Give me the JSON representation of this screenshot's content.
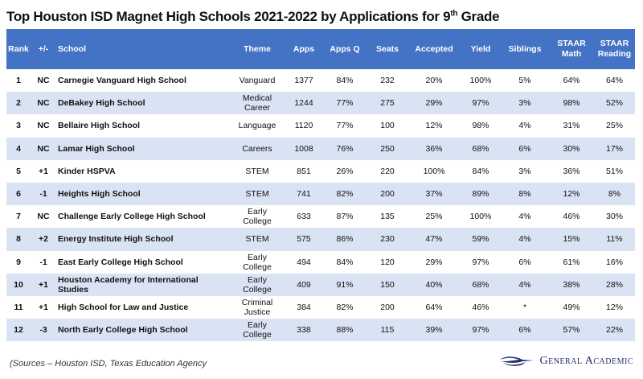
{
  "title": {
    "main": "Top Houston ISD Magnet High Schools 2021-2022 by Applications for 9",
    "sup": "th",
    "end": " Grade"
  },
  "colors": {
    "header": "#4472c4",
    "alt_row": "#dae3f3",
    "logo": "#1f2a6b"
  },
  "columns": [
    "Rank",
    "+/-",
    "School",
    "Theme",
    "Apps",
    "Apps Q",
    "Seats",
    "Accepted",
    "Yield",
    "Siblings",
    "STAAR Math",
    "STAAR Reading"
  ],
  "rows": [
    [
      "1",
      "NC",
      "Carnegie Vanguard High School",
      "Vanguard",
      "1377",
      "84%",
      "232",
      "20%",
      "100%",
      "5%",
      "64%",
      "64%"
    ],
    [
      "2",
      "NC",
      "DeBakey High School",
      "Medical Career",
      "1244",
      "77%",
      "275",
      "29%",
      "97%",
      "3%",
      "98%",
      "52%"
    ],
    [
      "3",
      "NC",
      "Bellaire High School",
      "Language",
      "1120",
      "77%",
      "100",
      "12%",
      "98%",
      "4%",
      "31%",
      "25%"
    ],
    [
      "4",
      "NC",
      "Lamar High School",
      "Careers",
      "1008",
      "76%",
      "250",
      "36%",
      "68%",
      "6%",
      "30%",
      "17%"
    ],
    [
      "5",
      "+1",
      "Kinder HSPVA",
      "STEM",
      "851",
      "26%",
      "220",
      "100%",
      "84%",
      "3%",
      "36%",
      "51%"
    ],
    [
      "6",
      "-1",
      "Heights High School",
      "STEM",
      "741",
      "82%",
      "200",
      "37%",
      "89%",
      "8%",
      "12%",
      "8%"
    ],
    [
      "7",
      "NC",
      "Challenge Early College High School",
      "Early College",
      "633",
      "87%",
      "135",
      "25%",
      "100%",
      "4%",
      "46%",
      "30%"
    ],
    [
      "8",
      "+2",
      "Energy Institute High School",
      "STEM",
      "575",
      "86%",
      "230",
      "47%",
      "59%",
      "4%",
      "15%",
      "11%"
    ],
    [
      "9",
      "-1",
      "East Early College High School",
      "Early College",
      "494",
      "84%",
      "120",
      "29%",
      "97%",
      "6%",
      "61%",
      "16%"
    ],
    [
      "10",
      "+1",
      "Houston Academy for International Studies",
      "Early College",
      "409",
      "91%",
      "150",
      "40%",
      "68%",
      "4%",
      "38%",
      "28%"
    ],
    [
      "11",
      "+1",
      "High School for Law and Justice",
      "Criminal Justice",
      "384",
      "82%",
      "200",
      "64%",
      "46%",
      "*",
      "49%",
      "12%"
    ],
    [
      "12",
      "-3",
      "North Early College High School",
      "Early College",
      "338",
      "88%",
      "115",
      "39%",
      "97%",
      "6%",
      "57%",
      "22%"
    ]
  ],
  "footer": {
    "sources": "(Sources – Houston ISD, Texas Education Agency",
    "logo_text": "General Academic",
    "logo_icon": "swoosh-logo-icon"
  }
}
